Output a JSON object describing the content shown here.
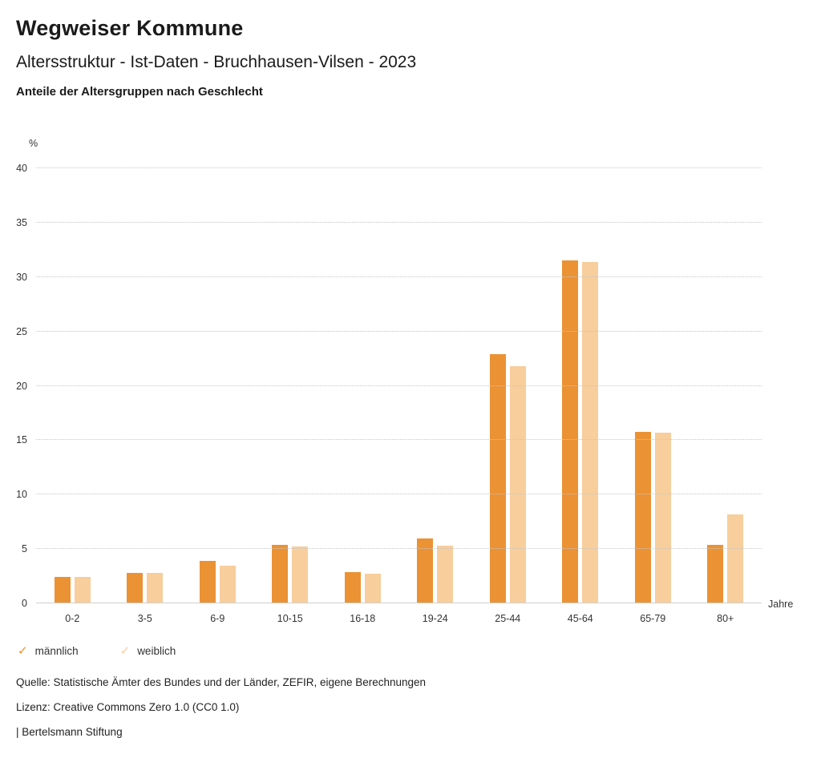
{
  "header": {
    "title": "Wegweiser Kommune",
    "subtitle": "Altersstruktur - Ist-Daten - Bruchhausen-Vilsen - 2023",
    "caption": "Anteile der Altersgruppen nach Geschlecht"
  },
  "axis": {
    "y_unit": "%",
    "x_unit": "Jahre"
  },
  "chart_data": {
    "type": "bar",
    "title": "Anteile der Altersgruppen nach Geschlecht",
    "categories": [
      "0-2",
      "3-5",
      "6-9",
      "10-15",
      "16-18",
      "19-24",
      "25-44",
      "45-64",
      "65-79",
      "80+"
    ],
    "series": [
      {
        "name": "männlich",
        "slug": "maennlich",
        "color": "#EB9234",
        "values": [
          2.4,
          2.8,
          3.9,
          5.4,
          2.9,
          6.0,
          22.9,
          31.5,
          15.8,
          5.4
        ]
      },
      {
        "name": "weiblich",
        "slug": "weiblich",
        "color": "#F7CE9C",
        "values": [
          2.4,
          2.8,
          3.5,
          5.2,
          2.7,
          5.3,
          21.8,
          31.4,
          15.7,
          8.2
        ]
      }
    ],
    "xlabel": "Jahre",
    "ylabel": "%",
    "ylim": [
      0,
      40
    ],
    "yticks": [
      0,
      5,
      10,
      15,
      20,
      25,
      30,
      35,
      40
    ],
    "grid": true,
    "legend_position": "bottom"
  },
  "legend": [
    {
      "label": "männlich",
      "color": "#EB9234",
      "icon": "✓"
    },
    {
      "label": "weiblich",
      "color": "#F7CE9C",
      "icon": "✓"
    }
  ],
  "footer": {
    "source": "Quelle: Statistische Ämter des Bundes und der Länder, ZEFIR, eigene Berechnungen",
    "license": "Lizenz: Creative Commons Zero 1.0 (CC0 1.0)",
    "attribution": "| Bertelsmann Stiftung"
  }
}
